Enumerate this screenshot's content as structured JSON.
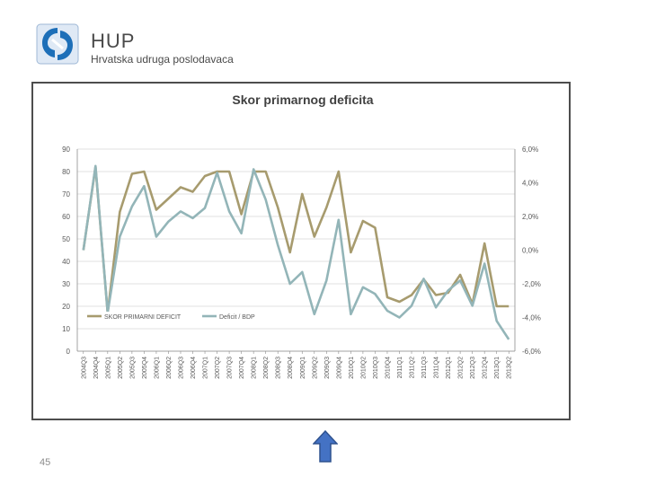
{
  "header": {
    "brand_name": "HUP",
    "brand_subtitle": "Hrvatska udruga poslodavaca"
  },
  "footer": {
    "page_number": "45"
  },
  "colors": {
    "score_line": "#a79b6e",
    "deficit_line": "#93b5b8",
    "logo_blue": "#1d6fb8",
    "arrow_blue": "#4472c4"
  },
  "chart_data": {
    "type": "line",
    "title": "Skor primarnog deficita",
    "categories": [
      "2004Q3",
      "2004Q4",
      "2005Q1",
      "2005Q2",
      "2005Q3",
      "2005Q4",
      "2006Q1",
      "2006Q2",
      "2006Q3",
      "2006Q4",
      "2007Q1",
      "2007Q2",
      "2007Q3",
      "2007Q4",
      "2008Q1",
      "2008Q2",
      "2008Q3",
      "2008Q4",
      "2009Q1",
      "2009Q2",
      "2009Q3",
      "2009Q4",
      "2010Q1",
      "2010Q2",
      "2010Q3",
      "2010Q4",
      "2011Q1",
      "2011Q2",
      "2011Q3",
      "2011Q4",
      "2012Q1",
      "2012Q2",
      "2012Q3",
      "2012Q4",
      "2013Q1",
      "2013Q2"
    ],
    "y_left": {
      "min": 0,
      "max": 90,
      "step": 10,
      "ticks": [
        "0",
        "10",
        "20",
        "30",
        "40",
        "50",
        "60",
        "70",
        "80",
        "90"
      ]
    },
    "y_right": {
      "min": -6,
      "max": 6,
      "step": 2,
      "ticks": [
        "-6,0%",
        "-4,0%",
        "-2,0%",
        "0,0%",
        "2,0%",
        "4,0%",
        "6,0%"
      ]
    },
    "series": [
      {
        "name": "SKOR PRIMARNI DEFICIT",
        "axis": "left",
        "values": [
          45,
          82,
          17,
          62,
          79,
          80,
          63,
          68,
          73,
          71,
          78,
          80,
          80,
          61,
          80,
          80,
          64,
          44,
          70,
          51,
          64,
          80,
          44,
          58,
          55,
          24,
          22,
          25,
          32,
          25,
          26,
          34,
          21,
          48,
          20,
          20
        ]
      },
      {
        "name": "Deficit / BDP",
        "axis": "right",
        "values": [
          0.0,
          5.0,
          -3.7,
          0.8,
          2.6,
          3.8,
          0.8,
          1.7,
          2.3,
          1.9,
          2.5,
          4.6,
          2.3,
          1.0,
          4.8,
          3.0,
          0.3,
          -2.0,
          -1.3,
          -3.8,
          -1.8,
          1.8,
          -3.8,
          -2.2,
          -2.6,
          -3.6,
          -4.0,
          -3.3,
          -1.7,
          -3.4,
          -2.4,
          -1.8,
          -3.3,
          -0.8,
          -4.2,
          -5.3
        ]
      }
    ],
    "legend_position": "bottom-left",
    "grid": true
  }
}
